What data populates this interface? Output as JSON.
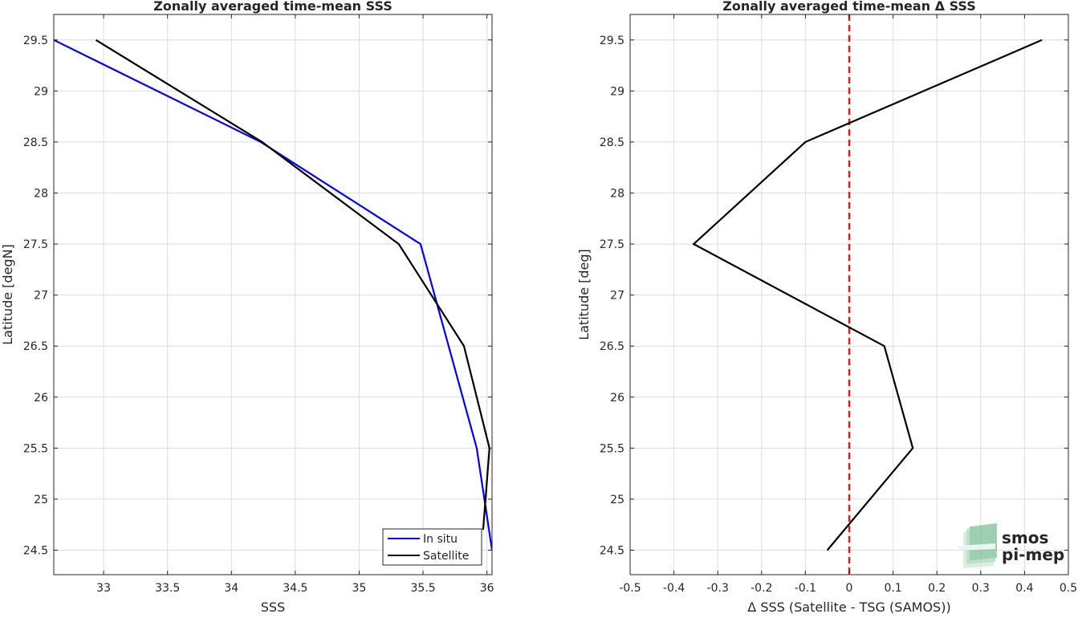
{
  "chart_data": [
    {
      "type": "line",
      "title": "Zonally averaged time-mean SSS",
      "xlabel": "SSS",
      "ylabel": "Latitude [degN]",
      "xlim": [
        32.61,
        36.04
      ],
      "ylim": [
        24.26,
        29.75
      ],
      "xticks": [
        33,
        33.5,
        34,
        34.5,
        35,
        35.5,
        36
      ],
      "xtick_labels": [
        "33",
        "33.5",
        "34",
        "34.5",
        "35",
        "35.5",
        "36"
      ],
      "yticks": [
        24.5,
        25,
        25.5,
        26,
        26.5,
        27,
        27.5,
        28,
        28.5,
        29,
        29.5
      ],
      "ytick_labels": [
        "24.5",
        "25",
        "25.5",
        "26",
        "26.5",
        "27",
        "27.5",
        "28",
        "28.5",
        "29",
        "29.5"
      ],
      "grid": true,
      "legend_position": "bottom-right",
      "series": [
        {
          "name": "In situ",
          "color": "#0000ff",
          "x": [
            36.04,
            35.92,
            35.48,
            34.23,
            32.61
          ],
          "y": [
            24.5,
            25.5,
            27.5,
            28.5,
            29.5
          ]
        },
        {
          "name": "Satellite",
          "color": "#000000",
          "x": [
            35.97,
            36.02,
            35.82,
            35.31,
            34.24,
            32.94
          ],
          "y": [
            24.7,
            25.5,
            26.5,
            27.5,
            28.5,
            29.5
          ]
        }
      ]
    },
    {
      "type": "line",
      "title": "Zonally averaged time-mean Δ SSS",
      "xlabel": "Δ SSS (Satellite - TSG (SAMOS))",
      "ylabel": "Latitude [deg]",
      "xlim": [
        -0.5,
        0.5
      ],
      "ylim": [
        24.26,
        29.75
      ],
      "xticks": [
        -0.5,
        -0.4,
        -0.3,
        -0.2,
        -0.1,
        0,
        0.1,
        0.2,
        0.3,
        0.4,
        0.5
      ],
      "xtick_labels": [
        "-0.5",
        "-0.4",
        "-0.3",
        "-0.2",
        "-0.1",
        "0",
        "0.1",
        "0.2",
        "0.3",
        "0.4",
        "0.5"
      ],
      "yticks": [
        24.5,
        25,
        25.5,
        26,
        26.5,
        27,
        27.5,
        28,
        28.5,
        29,
        29.5
      ],
      "ytick_labels": [
        "24.5",
        "25",
        "25.5",
        "26",
        "26.5",
        "27",
        "27.5",
        "28",
        "28.5",
        "29",
        "29.5"
      ],
      "grid": true,
      "reference_line": {
        "x": 0,
        "color": "#e41a1c",
        "style": "dashed"
      },
      "series": [
        {
          "color": "#000000",
          "x": [
            -0.05,
            0.145,
            0.08,
            -0.355,
            -0.1,
            0.44
          ],
          "y": [
            24.5,
            25.5,
            26.5,
            27.5,
            28.5,
            29.5
          ]
        }
      ]
    }
  ],
  "logo": {
    "line1": "smos",
    "line2": "pi-mep",
    "color": "#7fbf9a"
  }
}
